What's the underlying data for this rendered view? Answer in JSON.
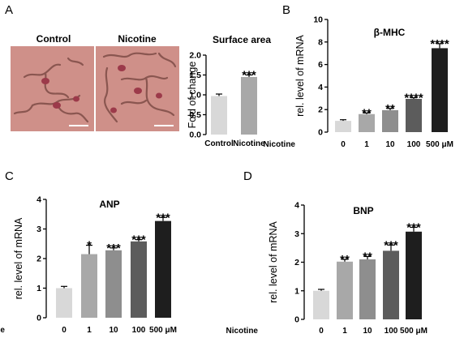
{
  "panels": {
    "A": "A",
    "B": "B",
    "C": "C",
    "D": "D"
  },
  "images": {
    "control_label": "Control",
    "nicotine_label": "Nicotine",
    "fill_color": "#cf9089",
    "cell_color": "#8a5650"
  },
  "nicotine_row_label": "Nicotine",
  "colors": [
    "#d8d8d8",
    "#a8a8a8",
    "#8e8e8e",
    "#5c5c5c",
    "#1e1e1e"
  ],
  "chart_data": [
    {
      "id": "surface-area",
      "type": "bar",
      "title": "Surface area",
      "ylabel": "Fold of change",
      "xlabel": "",
      "categories": [
        "Control",
        "Nicotine"
      ],
      "values": [
        0.97,
        1.45
      ],
      "errors": [
        0.05,
        0.05
      ],
      "significance": [
        "",
        "***"
      ],
      "ylim": [
        0,
        2
      ],
      "yticks": [
        0.0,
        0.5,
        1.0,
        1.5,
        2.0
      ],
      "ytick_labels": [
        "0.0",
        "0.5",
        "1.0",
        "1.5",
        "2.0"
      ],
      "grid": false,
      "colors": [
        "#d8d8d8",
        "#a8a8a8"
      ]
    },
    {
      "id": "beta-mhc",
      "type": "bar",
      "title": "β-MHC",
      "ylabel": "rel. level of mRNA",
      "xlabel": "",
      "categories": [
        "0",
        "1",
        "10",
        "100",
        "500 μM"
      ],
      "values": [
        1.0,
        1.6,
        1.95,
        2.95,
        7.45
      ],
      "errors": [
        0.1,
        0.1,
        0.15,
        0.1,
        0.4
      ],
      "significance": [
        "",
        "**",
        "**",
        "****",
        "****"
      ],
      "ylim": [
        0,
        10
      ],
      "yticks": [
        0,
        2,
        4,
        6,
        8,
        10
      ],
      "ytick_labels": [
        "0",
        "2",
        "4",
        "6",
        "8",
        "10"
      ],
      "grid": false
    },
    {
      "id": "anp",
      "type": "bar",
      "title": "ANP",
      "ylabel": "rel. level of mRNA",
      "xlabel": "",
      "categories": [
        "0",
        "1",
        "10",
        "100",
        "500 μM"
      ],
      "values": [
        1.0,
        2.15,
        2.28,
        2.58,
        3.27
      ],
      "errors": [
        0.06,
        0.3,
        0.08,
        0.06,
        0.12
      ],
      "significance": [
        "",
        "*",
        "***",
        "***",
        "***"
      ],
      "ylim": [
        0,
        4
      ],
      "yticks": [
        0,
        1,
        2,
        3,
        4
      ],
      "ytick_labels": [
        "0",
        "1",
        "2",
        "3",
        "4"
      ],
      "grid": false
    },
    {
      "id": "bnp",
      "type": "bar",
      "title": "BNP",
      "ylabel": "rel. level of mRNA",
      "xlabel": "",
      "categories": [
        "0",
        "1",
        "10",
        "100",
        "500 μM"
      ],
      "values": [
        1.0,
        2.02,
        2.1,
        2.4,
        3.07
      ],
      "errors": [
        0.05,
        0.08,
        0.1,
        0.2,
        0.15
      ],
      "significance": [
        "",
        "**",
        "**",
        "***",
        "***"
      ],
      "ylim": [
        0,
        4
      ],
      "yticks": [
        0,
        1,
        2,
        3,
        4
      ],
      "ytick_labels": [
        "0",
        "1",
        "2",
        "3",
        "4"
      ],
      "grid": false
    }
  ]
}
